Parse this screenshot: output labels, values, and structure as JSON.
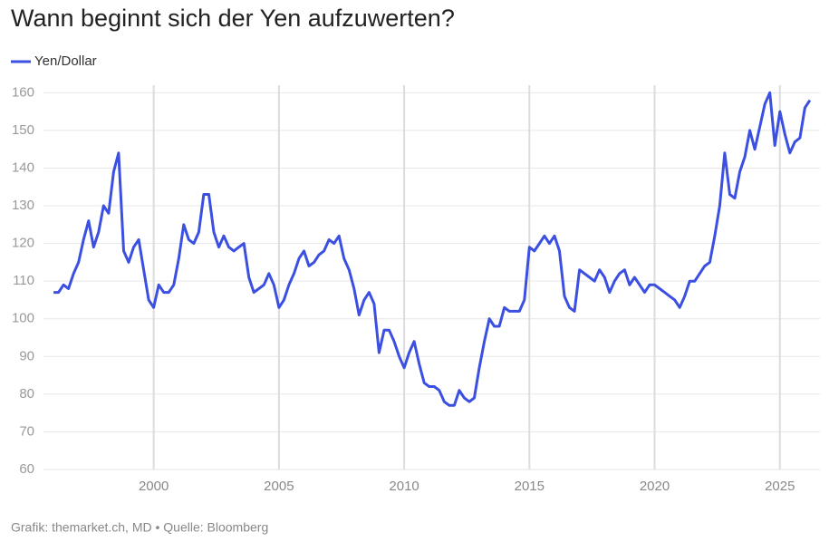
{
  "chart_data": {
    "type": "line",
    "title": "Wann beginnt sich der Yen aufzuwerten?",
    "source": "Grafik: themarket.ch, MD • Quelle: Bloomberg",
    "x": [
      1996,
      1996.2,
      1996.4,
      1996.6,
      1996.8,
      1997,
      1997.2,
      1997.4,
      1997.6,
      1997.8,
      1998,
      1998.2,
      1998.4,
      1998.6,
      1998.8,
      1999,
      1999.2,
      1999.4,
      1999.6,
      1999.8,
      2000,
      2000.2,
      2000.4,
      2000.6,
      2000.8,
      2001,
      2001.2,
      2001.4,
      2001.6,
      2001.8,
      2002,
      2002.2,
      2002.4,
      2002.6,
      2002.8,
      2003,
      2003.2,
      2003.4,
      2003.6,
      2003.8,
      2004,
      2004.2,
      2004.4,
      2004.6,
      2004.8,
      2005,
      2005.2,
      2005.4,
      2005.6,
      2005.8,
      2006,
      2006.2,
      2006.4,
      2006.6,
      2006.8,
      2007,
      2007.2,
      2007.4,
      2007.6,
      2007.8,
      2008,
      2008.2,
      2008.4,
      2008.6,
      2008.8,
      2009,
      2009.2,
      2009.4,
      2009.6,
      2009.8,
      2010,
      2010.2,
      2010.4,
      2010.6,
      2010.8,
      2011,
      2011.2,
      2011.4,
      2011.6,
      2011.8,
      2012,
      2012.2,
      2012.4,
      2012.6,
      2012.8,
      2013,
      2013.2,
      2013.4,
      2013.6,
      2013.8,
      2014,
      2014.2,
      2014.4,
      2014.6,
      2014.8,
      2015,
      2015.2,
      2015.4,
      2015.6,
      2015.8,
      2016,
      2016.2,
      2016.4,
      2016.6,
      2016.8,
      2017,
      2017.2,
      2017.4,
      2017.6,
      2017.8,
      2018,
      2018.2,
      2018.4,
      2018.6,
      2018.8,
      2019,
      2019.2,
      2019.4,
      2019.6,
      2019.8,
      2020,
      2020.2,
      2020.4,
      2020.6,
      2020.8,
      2021,
      2021.2,
      2021.4,
      2021.6,
      2021.8,
      2022,
      2022.2,
      2022.4,
      2022.6,
      2022.8,
      2023,
      2023.2,
      2023.4,
      2023.6,
      2023.8,
      2024,
      2024.2,
      2024.4,
      2024.6,
      2024.8,
      2025,
      2025.2,
      2025.4,
      2025.6,
      2025.8,
      2026,
      2026.2
    ],
    "series": [
      {
        "name": "Yen/Dollar",
        "color": "#3b4fe0",
        "values": [
          107,
          107,
          109,
          108,
          112,
          115,
          121,
          126,
          119,
          123,
          130,
          128,
          139,
          144,
          118,
          115,
          119,
          121,
          113,
          105,
          103,
          109,
          107,
          107,
          109,
          116,
          125,
          121,
          120,
          123,
          133,
          133,
          123,
          119,
          122,
          119,
          118,
          119,
          120,
          111,
          107,
          108,
          109,
          112,
          109,
          103,
          105,
          109,
          112,
          116,
          118,
          114,
          115,
          117,
          118,
          121,
          120,
          122,
          116,
          113,
          108,
          101,
          105,
          107,
          104,
          91,
          97,
          97,
          94,
          90,
          87,
          91,
          94,
          88,
          83,
          82,
          82,
          81,
          78,
          77,
          77,
          81,
          79,
          78,
          79,
          87,
          94,
          100,
          98,
          98,
          103,
          102,
          102,
          102,
          105,
          119,
          118,
          120,
          122,
          120,
          122,
          118,
          106,
          103,
          102,
          113,
          112,
          111,
          110,
          113,
          111,
          107,
          110,
          112,
          113,
          109,
          111,
          109,
          107,
          109,
          109,
          108,
          107,
          106,
          105,
          103,
          106,
          110,
          110,
          112,
          114,
          115,
          122,
          130,
          144,
          133,
          132,
          139,
          143,
          150,
          145,
          151,
          157,
          160,
          146,
          155,
          149,
          144,
          147,
          148,
          156,
          158
        ]
      }
    ],
    "xlim": [
      1995.6,
      2026.6
    ],
    "xticks": [
      2000,
      2005,
      2010,
      2015,
      2020,
      2025
    ],
    "ylim": [
      60,
      162
    ],
    "yticks": [
      60,
      70,
      80,
      90,
      100,
      110,
      120,
      130,
      140,
      150,
      160
    ],
    "grid": true
  }
}
